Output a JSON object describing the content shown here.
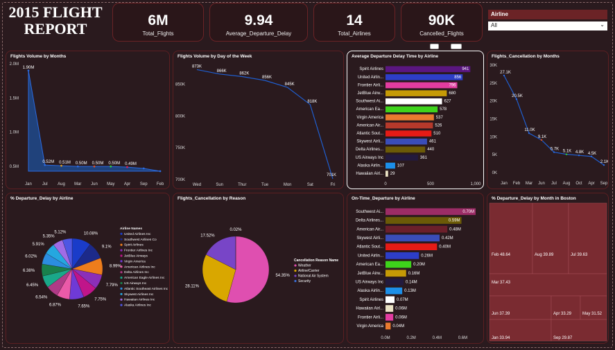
{
  "dashboard": {
    "title": "2015 FLIGHT REPORT",
    "kpis": [
      {
        "value": "6M",
        "label": "Total_Flights"
      },
      {
        "value": "9.94",
        "label": "Average_Departure_Delay"
      },
      {
        "value": "14",
        "label": "Total_Airlines"
      },
      {
        "value": "90K",
        "label": "Cancelled_Flights"
      }
    ],
    "slicer": {
      "label": "Airline",
      "value": "All"
    }
  },
  "colors": {
    "background": "#2a1a1e",
    "panel_border": "#5c1f22",
    "accent": "#6b2326",
    "line": "#1f5fd1",
    "treemap": "#7a2b31"
  },
  "panel_titles": {
    "months": "Flights Volume by Months",
    "dow": "Flights Volume by Day of the Week",
    "delay_airline": "Average Departure Delay Time by Airline",
    "cancel_months": "Flights_Cancellation by Months",
    "pct_delay": "% Departure_Delay by Airline",
    "cancel_reason": "Flights_Cancellation by Reason",
    "ontime": "On-Time_Departure by Airline",
    "boston": "% Departure_Delay by Month in Boston"
  },
  "chart_data": [
    {
      "type": "area",
      "title": "Flights Volume by Months",
      "categories": [
        "Jan",
        "Jul",
        "Aug",
        "Mar",
        "Jun",
        "May",
        "Apr",
        "Sep",
        "Feb"
      ],
      "values": [
        1.9,
        0.52,
        0.51,
        0.5,
        0.5,
        0.5,
        0.49,
        0.47,
        0.43
      ],
      "data_labels": [
        "1.90M",
        "0.52M",
        "0.51M",
        "0.50M",
        "0.50M",
        "0.50M",
        "0.49M",
        "",
        ""
      ],
      "yticks": [
        "0.5M",
        "1.0M",
        "1.5M",
        "2.0M"
      ],
      "ylim": [
        0.43,
        2.0
      ]
    },
    {
      "type": "line",
      "title": "Flights Volume by Day of the Week",
      "categories": [
        "Wed",
        "Sun",
        "Thur",
        "Tue",
        "Mon",
        "Sat",
        "Fri"
      ],
      "values": [
        873,
        866,
        862,
        856,
        845,
        818,
        701
      ],
      "data_labels": [
        "873K",
        "866K",
        "862K",
        "856K",
        "845K",
        "818K",
        "701K"
      ],
      "yticks": [
        "700K",
        "750K",
        "800K",
        "850K"
      ],
      "ylim": [
        700,
        880
      ]
    },
    {
      "type": "bar",
      "title": "Average Departure Delay Time by Airline",
      "categories": [
        "Spirit Airlines",
        "United Airlin...",
        "Frontier Airli...",
        "JetBlue Airw...",
        "Southwest Ai...",
        "American Ea...",
        "Virgin America",
        "American Air...",
        "Atlantic Sout...",
        "Skywest Airli...",
        "Delta Airlines...",
        "US Airways Inc",
        "Alaska Airlin...",
        "Hawaiian Airl..."
      ],
      "values": [
        941,
        856,
        796,
        680,
        627,
        578,
        537,
        526,
        510,
        461,
        440,
        361,
        107,
        29
      ],
      "colors": [
        "#5a1680",
        "#2d3ec7",
        "#e23ca0",
        "#c59a06",
        "#ffffff",
        "#3ed31b",
        "#ea7a2f",
        "#b5392b",
        "#e51b16",
        "#3a4db8",
        "#6b5a07",
        "#231a3d",
        "#1c8fe8",
        "#eae2c4"
      ],
      "xticks": [
        "0",
        "500",
        "1,000"
      ],
      "xlim": [
        0,
        1000
      ]
    },
    {
      "type": "line",
      "title": "Flights_Cancellation by Months",
      "categories": [
        "Jan",
        "Feb",
        "Mar",
        "Jun",
        "Jul",
        "Aug",
        "Oct",
        "Apr",
        "Sep"
      ],
      "values": [
        27.1,
        20.5,
        11.0,
        9.1,
        5.7,
        5.1,
        4.8,
        4.5,
        2.1
      ],
      "data_labels": [
        "27.1K",
        "20.5K",
        "11.0K",
        "9.1K",
        "5.7K",
        "5.1K",
        "4.8K",
        "4.5K",
        "2.1K"
      ],
      "yticks": [
        "0K",
        "5K",
        "10K",
        "15K",
        "20K",
        "25K",
        "30K"
      ],
      "ylim": [
        0,
        30
      ]
    },
    {
      "type": "pie",
      "title": "% Departure_Delay by Airline",
      "labels": [
        "United Airlines Inc",
        "Southwest Airlines Co",
        "Spirit Airlines",
        "Frontier Airlines Inc",
        "JetBlue Airways",
        "Virgin America",
        "American Airlines Inc",
        "Delta Airlines Inc",
        "American Eagle Airlines Inc",
        "US Airways Inc",
        "Atlantic Southeast Airlines Inc",
        "Skywest Airlines Inc",
        "Hawaiian Airlines Inc",
        "Alaska Airlines Inc"
      ],
      "values": [
        10.08,
        9.1,
        8.99,
        7.79,
        7.75,
        7.65,
        6.87,
        6.54,
        6.45,
        6.38,
        6.02,
        5.91,
        5.35,
        5.12
      ],
      "data_labels": [
        "10.08%",
        "9.1%",
        "8.99%",
        "7.79%",
        "7.75%",
        "7.65%",
        "6.87%",
        "6.54%",
        "6.45%",
        "6.38%",
        "6.02%",
        "5.91%",
        "5.35%",
        "5.12%"
      ],
      "colors": [
        "#1a3cc9",
        "#1c2a8a",
        "#ee7d1c",
        "#8b2fb8",
        "#c0158a",
        "#6f3ad6",
        "#ea5aa8",
        "#b03a87",
        "#1aa889",
        "#19804c",
        "#2b8de0",
        "#25a7e0",
        "#a06ce6",
        "#4e57e3"
      ],
      "legend_title": "Airline Names",
      "legend": "right"
    },
    {
      "type": "pie",
      "title": "Flights_Cancellation by Reason",
      "labels": [
        "Weather",
        "Airline/Carrier",
        "National Air System",
        "Security"
      ],
      "values": [
        54.35,
        28.11,
        17.52,
        0.02
      ],
      "data_labels": [
        "54.35%",
        "28.11%",
        "17.52%",
        "0.02%"
      ],
      "colors": [
        "#df4fb0",
        "#d9a700",
        "#7845c7",
        "#3a6fd8"
      ],
      "legend_title": "Cancellation Reason Name",
      "legend": "right"
    },
    {
      "type": "bar",
      "title": "On-Time_Departure by Airline",
      "categories": [
        "Southwest Ai...",
        "Delta Airlines...",
        "American Air...",
        "Skywest Airli...",
        "Atlantic Sout...",
        "United Airlin...",
        "American Ea...",
        "JetBlue Airw...",
        "US Airways Inc",
        "Alaska Airlin...",
        "Spirit Airlines",
        "Hawaiian Airl...",
        "Frontier Airli...",
        "Virgin America"
      ],
      "values": [
        0.7,
        0.59,
        0.48,
        0.42,
        0.4,
        0.26,
        0.2,
        0.16,
        0.14,
        0.13,
        0.07,
        0.06,
        0.06,
        0.04
      ],
      "data_labels": [
        "0.70M",
        "0.59M",
        "0.48M",
        "0.42M",
        "0.40M",
        "0.26M",
        "0.20M",
        "0.16M",
        "0.14M",
        "0.13M",
        "0.07M",
        "0.06M",
        "0.06M",
        "0.04M"
      ],
      "colors": [
        "#9c2c66",
        "#6b5a07",
        "#6b1f2a",
        "#3a4db8",
        "#e51b16",
        "#2d3ec7",
        "#3ed31b",
        "#c59a06",
        "#231a3d",
        "#1c8fe8",
        "#ffffff",
        "#eae2c4",
        "#e23ca0",
        "#ea7a2f"
      ],
      "xticks": [
        "0.0M",
        "0.2M",
        "0.4M",
        "0.6M"
      ],
      "xlim": [
        0,
        0.7
      ]
    },
    {
      "type": "treemap",
      "title": "% Departure_Delay by Month in Boston",
      "group": "BOS",
      "labels": [
        "Feb 48.64",
        "Aug 39.89",
        "Jul 39.63",
        "Mar 37.43",
        "Jun 37.39",
        "Apr 33.29",
        "May 31.52",
        "Jan 33.94",
        "Sep 29.87"
      ],
      "values": [
        48.64,
        39.89,
        39.63,
        37.43,
        37.39,
        33.29,
        31.52,
        33.94,
        29.87
      ]
    }
  ]
}
